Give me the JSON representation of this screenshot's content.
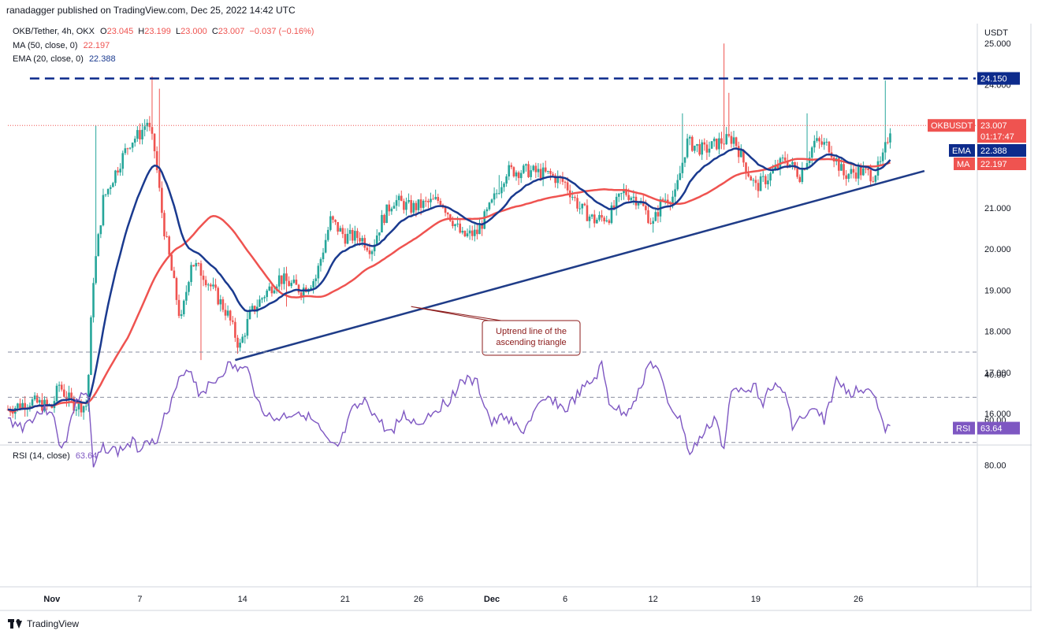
{
  "header": {
    "publisher": "ranadagger published on TradingView.com, Dec 25, 2022 14:42 UTC"
  },
  "legend": {
    "symbol": "OKB/Tether, 4h, OKX",
    "ohlc": {
      "o_label": "O",
      "o": "23.045",
      "h_label": "H",
      "h": "23.199",
      "l_label": "L",
      "l": "23.000",
      "c_label": "C",
      "c": "23.007",
      "change": "−0.037 (−0.16%)"
    },
    "ma": {
      "label": "MA (50, close, 0)",
      "value": "22.197"
    },
    "ema": {
      "label": "EMA (20, close, 0)",
      "value": "22.388"
    },
    "rsi": {
      "label": "RSI (14, close)",
      "value": "63.64"
    }
  },
  "footer": {
    "brand": "TradingView"
  },
  "colors": {
    "ema": "#1a3a8f",
    "ma": "#ef5350",
    "up": "#26a69a",
    "down": "#ef5350",
    "resistance": "#0d2b8c",
    "trendline": "#1f3c88",
    "rsi_line": "#7e57c2",
    "rsi_band": "#ede7f6"
  },
  "chart_data": [
    {
      "type": "candlestick",
      "title": "OKB/Tether, 4h, OKX",
      "y_unit": "USDT",
      "ylim": [
        15.6,
        25.2
      ],
      "y_ticks": [
        "16.000",
        "17.000",
        "18.000",
        "19.000",
        "20.000",
        "21.000",
        "24.000",
        "25.000"
      ],
      "x_ticks": [
        "Nov",
        "7",
        "14",
        "21",
        "26",
        "Dec",
        "6",
        "12",
        "19",
        "26"
      ],
      "x_tick_days": [
        0,
        6,
        13,
        20,
        25,
        30,
        35,
        41,
        48,
        55
      ],
      "x_range_days": [
        -3,
        63
      ],
      "price_path": [
        [
          -3,
          16.1
        ],
        [
          -1.5,
          16.3
        ],
        [
          0,
          16.15
        ],
        [
          0.5,
          16.7
        ],
        [
          1,
          16.4
        ],
        [
          1.6,
          16.2
        ],
        [
          2.4,
          16.2
        ],
        [
          2.8,
          19.2
        ],
        [
          3.5,
          21.2
        ],
        [
          4.5,
          22.0
        ],
        [
          5.3,
          22.6
        ],
        [
          6,
          22.8
        ],
        [
          6.5,
          23.1
        ],
        [
          7,
          22.4
        ],
        [
          7.6,
          20.6
        ],
        [
          8.1,
          19.6
        ],
        [
          8.8,
          18.2
        ],
        [
          9.5,
          19.7
        ],
        [
          10.3,
          19.4
        ],
        [
          11,
          19.0
        ],
        [
          12,
          18.4
        ],
        [
          12.8,
          17.6
        ],
        [
          13.5,
          18.4
        ],
        [
          14.5,
          18.9
        ],
        [
          15.5,
          19.3
        ],
        [
          17,
          19.0
        ],
        [
          18,
          19.3
        ],
        [
          19,
          20.7
        ],
        [
          20,
          20.3
        ],
        [
          21,
          20.3
        ],
        [
          21.8,
          20.0
        ],
        [
          22.5,
          20.7
        ],
        [
          23.3,
          21.2
        ],
        [
          24.5,
          21.0
        ],
        [
          25.5,
          21.1
        ],
        [
          26.5,
          21.2
        ],
        [
          28,
          20.3
        ],
        [
          29,
          20.4
        ],
        [
          30,
          21.1
        ],
        [
          31,
          21.9
        ],
        [
          32.5,
          21.9
        ],
        [
          34,
          21.8
        ],
        [
          35,
          21.6
        ],
        [
          36,
          21.0
        ],
        [
          37,
          20.7
        ],
        [
          38,
          20.8
        ],
        [
          39,
          21.4
        ],
        [
          40,
          21.2
        ],
        [
          41,
          20.6
        ],
        [
          41.6,
          21.2
        ],
        [
          42.5,
          21.3
        ],
        [
          43.3,
          22.6
        ],
        [
          44.5,
          22.4
        ],
        [
          45.5,
          22.6
        ],
        [
          46.5,
          22.7
        ],
        [
          47.3,
          22.0
        ],
        [
          48,
          21.5
        ],
        [
          49,
          21.8
        ],
        [
          50,
          22.2
        ],
        [
          51,
          21.8
        ],
        [
          52,
          22.6
        ],
        [
          53,
          22.5
        ],
        [
          54,
          21.8
        ],
        [
          55,
          21.9
        ],
        [
          56,
          21.8
        ],
        [
          56.6,
          22.1
        ],
        [
          57.2,
          23.0
        ]
      ],
      "spikes": [
        [
          3.0,
          23.0
        ],
        [
          6.8,
          24.2
        ],
        [
          7.3,
          23.9
        ],
        [
          10.2,
          17.3
        ],
        [
          16.0,
          18.6
        ],
        [
          30.5,
          21.8
        ],
        [
          41.0,
          20.4
        ],
        [
          43.0,
          23.3
        ],
        [
          45.8,
          25.0
        ],
        [
          46.2,
          23.8
        ],
        [
          51.5,
          23.3
        ],
        [
          56.8,
          24.1
        ]
      ],
      "last_price": "23.007",
      "countdown": "01:17:47",
      "symbol_tag": "OKBUSDT",
      "ema_20_last": "22.388",
      "ma_50_last": "22.197",
      "tags": {
        "ema": "EMA",
        "ma": "MA",
        "resistance": "24.150"
      },
      "resistance": {
        "value": 24.15,
        "from_day": -1.5,
        "to_day": 63
      },
      "trendline": {
        "from": [
          12.5,
          17.3
        ],
        "to": [
          59.5,
          21.9
        ]
      },
      "annotation": {
        "text_lines": [
          "Uptrend line of the",
          "ascending triangle"
        ],
        "points_to": [
          24.5,
          18.6
        ]
      }
    },
    {
      "type": "line",
      "title": "RSI (14, close)",
      "ylim": [
        30,
        90
      ],
      "y_ticks": [
        "40.00",
        "60.00",
        "80.00"
      ],
      "band": [
        30,
        70
      ],
      "mid": 50,
      "last_value": "63.64",
      "tag": "RSI",
      "path": [
        [
          -3,
          60
        ],
        [
          -2,
          63
        ],
        [
          -1,
          57
        ],
        [
          0,
          55
        ],
        [
          0.5,
          72
        ],
        [
          1,
          68
        ],
        [
          1.5,
          55
        ],
        [
          2,
          48
        ],
        [
          2.5,
          50
        ],
        [
          2.8,
          82
        ],
        [
          3.5,
          72
        ],
        [
          4.5,
          74
        ],
        [
          5.5,
          70
        ],
        [
          6,
          73
        ],
        [
          6.5,
          67
        ],
        [
          7,
          72
        ],
        [
          7.5,
          60
        ],
        [
          8,
          56
        ],
        [
          8.5,
          46
        ],
        [
          9,
          38
        ],
        [
          9.5,
          38
        ],
        [
          10,
          48
        ],
        [
          11,
          44
        ],
        [
          12,
          36
        ],
        [
          13,
          38
        ],
        [
          13.5,
          38
        ],
        [
          14,
          52
        ],
        [
          15,
          60
        ],
        [
          16,
          58
        ],
        [
          17,
          56
        ],
        [
          18,
          62
        ],
        [
          19,
          72
        ],
        [
          19.6,
          72
        ],
        [
          20.5,
          56
        ],
        [
          21.5,
          52
        ],
        [
          22,
          58
        ],
        [
          23,
          66
        ],
        [
          24,
          58
        ],
        [
          25,
          62
        ],
        [
          26,
          56
        ],
        [
          27,
          52
        ],
        [
          28,
          42
        ],
        [
          29,
          44
        ],
        [
          30,
          62
        ],
        [
          31,
          58
        ],
        [
          32,
          66
        ],
        [
          33,
          56
        ],
        [
          34,
          50
        ],
        [
          35,
          56
        ],
        [
          36,
          48
        ],
        [
          37,
          42
        ],
        [
          37.5,
          36
        ],
        [
          38,
          52
        ],
        [
          39,
          58
        ],
        [
          40,
          48
        ],
        [
          40.7,
          35
        ],
        [
          41.2,
          36
        ],
        [
          42,
          52
        ],
        [
          43,
          62
        ],
        [
          43.5,
          76
        ],
        [
          44,
          70
        ],
        [
          44.5,
          66
        ],
        [
          45.3,
          58
        ],
        [
          45.8,
          76
        ],
        [
          46.3,
          48
        ],
        [
          47,
          45
        ],
        [
          48,
          46
        ],
        [
          48.5,
          52
        ],
        [
          49,
          45
        ],
        [
          50,
          48
        ],
        [
          50.5,
          62
        ],
        [
          51,
          60
        ],
        [
          52,
          56
        ],
        [
          52.7,
          60
        ],
        [
          53.5,
          43
        ],
        [
          54.5,
          48
        ],
        [
          55,
          47
        ],
        [
          55.5,
          45
        ],
        [
          56,
          47
        ],
        [
          56.7,
          64
        ],
        [
          57.2,
          63.64
        ]
      ]
    }
  ]
}
